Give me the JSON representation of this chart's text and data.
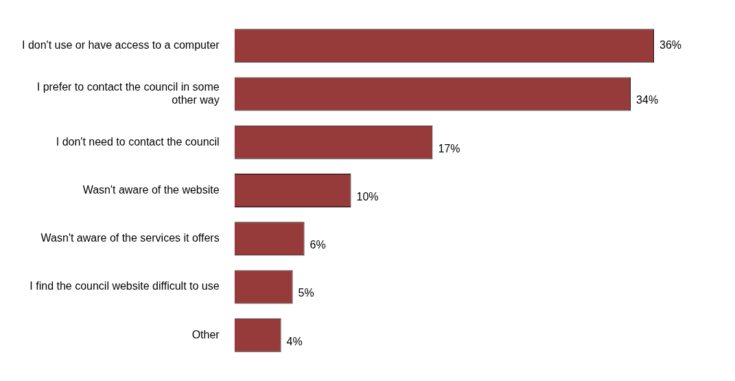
{
  "chart_data": {
    "type": "bar",
    "orientation": "horizontal",
    "categories": [
      "I don't use or have access to a computer",
      "I prefer to contact the council in some other way",
      "I don't need to contact the council",
      "Wasn't aware of the website",
      "Wasn't aware of the services it offers",
      "I find the council website difficult to use",
      "Other"
    ],
    "values": [
      36,
      34,
      17,
      10,
      6,
      5,
      4
    ],
    "value_labels": [
      "36%",
      "34%",
      "17%",
      "10%",
      "6%",
      "5%",
      "4%"
    ],
    "color": "#963a3a",
    "legend": false
  }
}
